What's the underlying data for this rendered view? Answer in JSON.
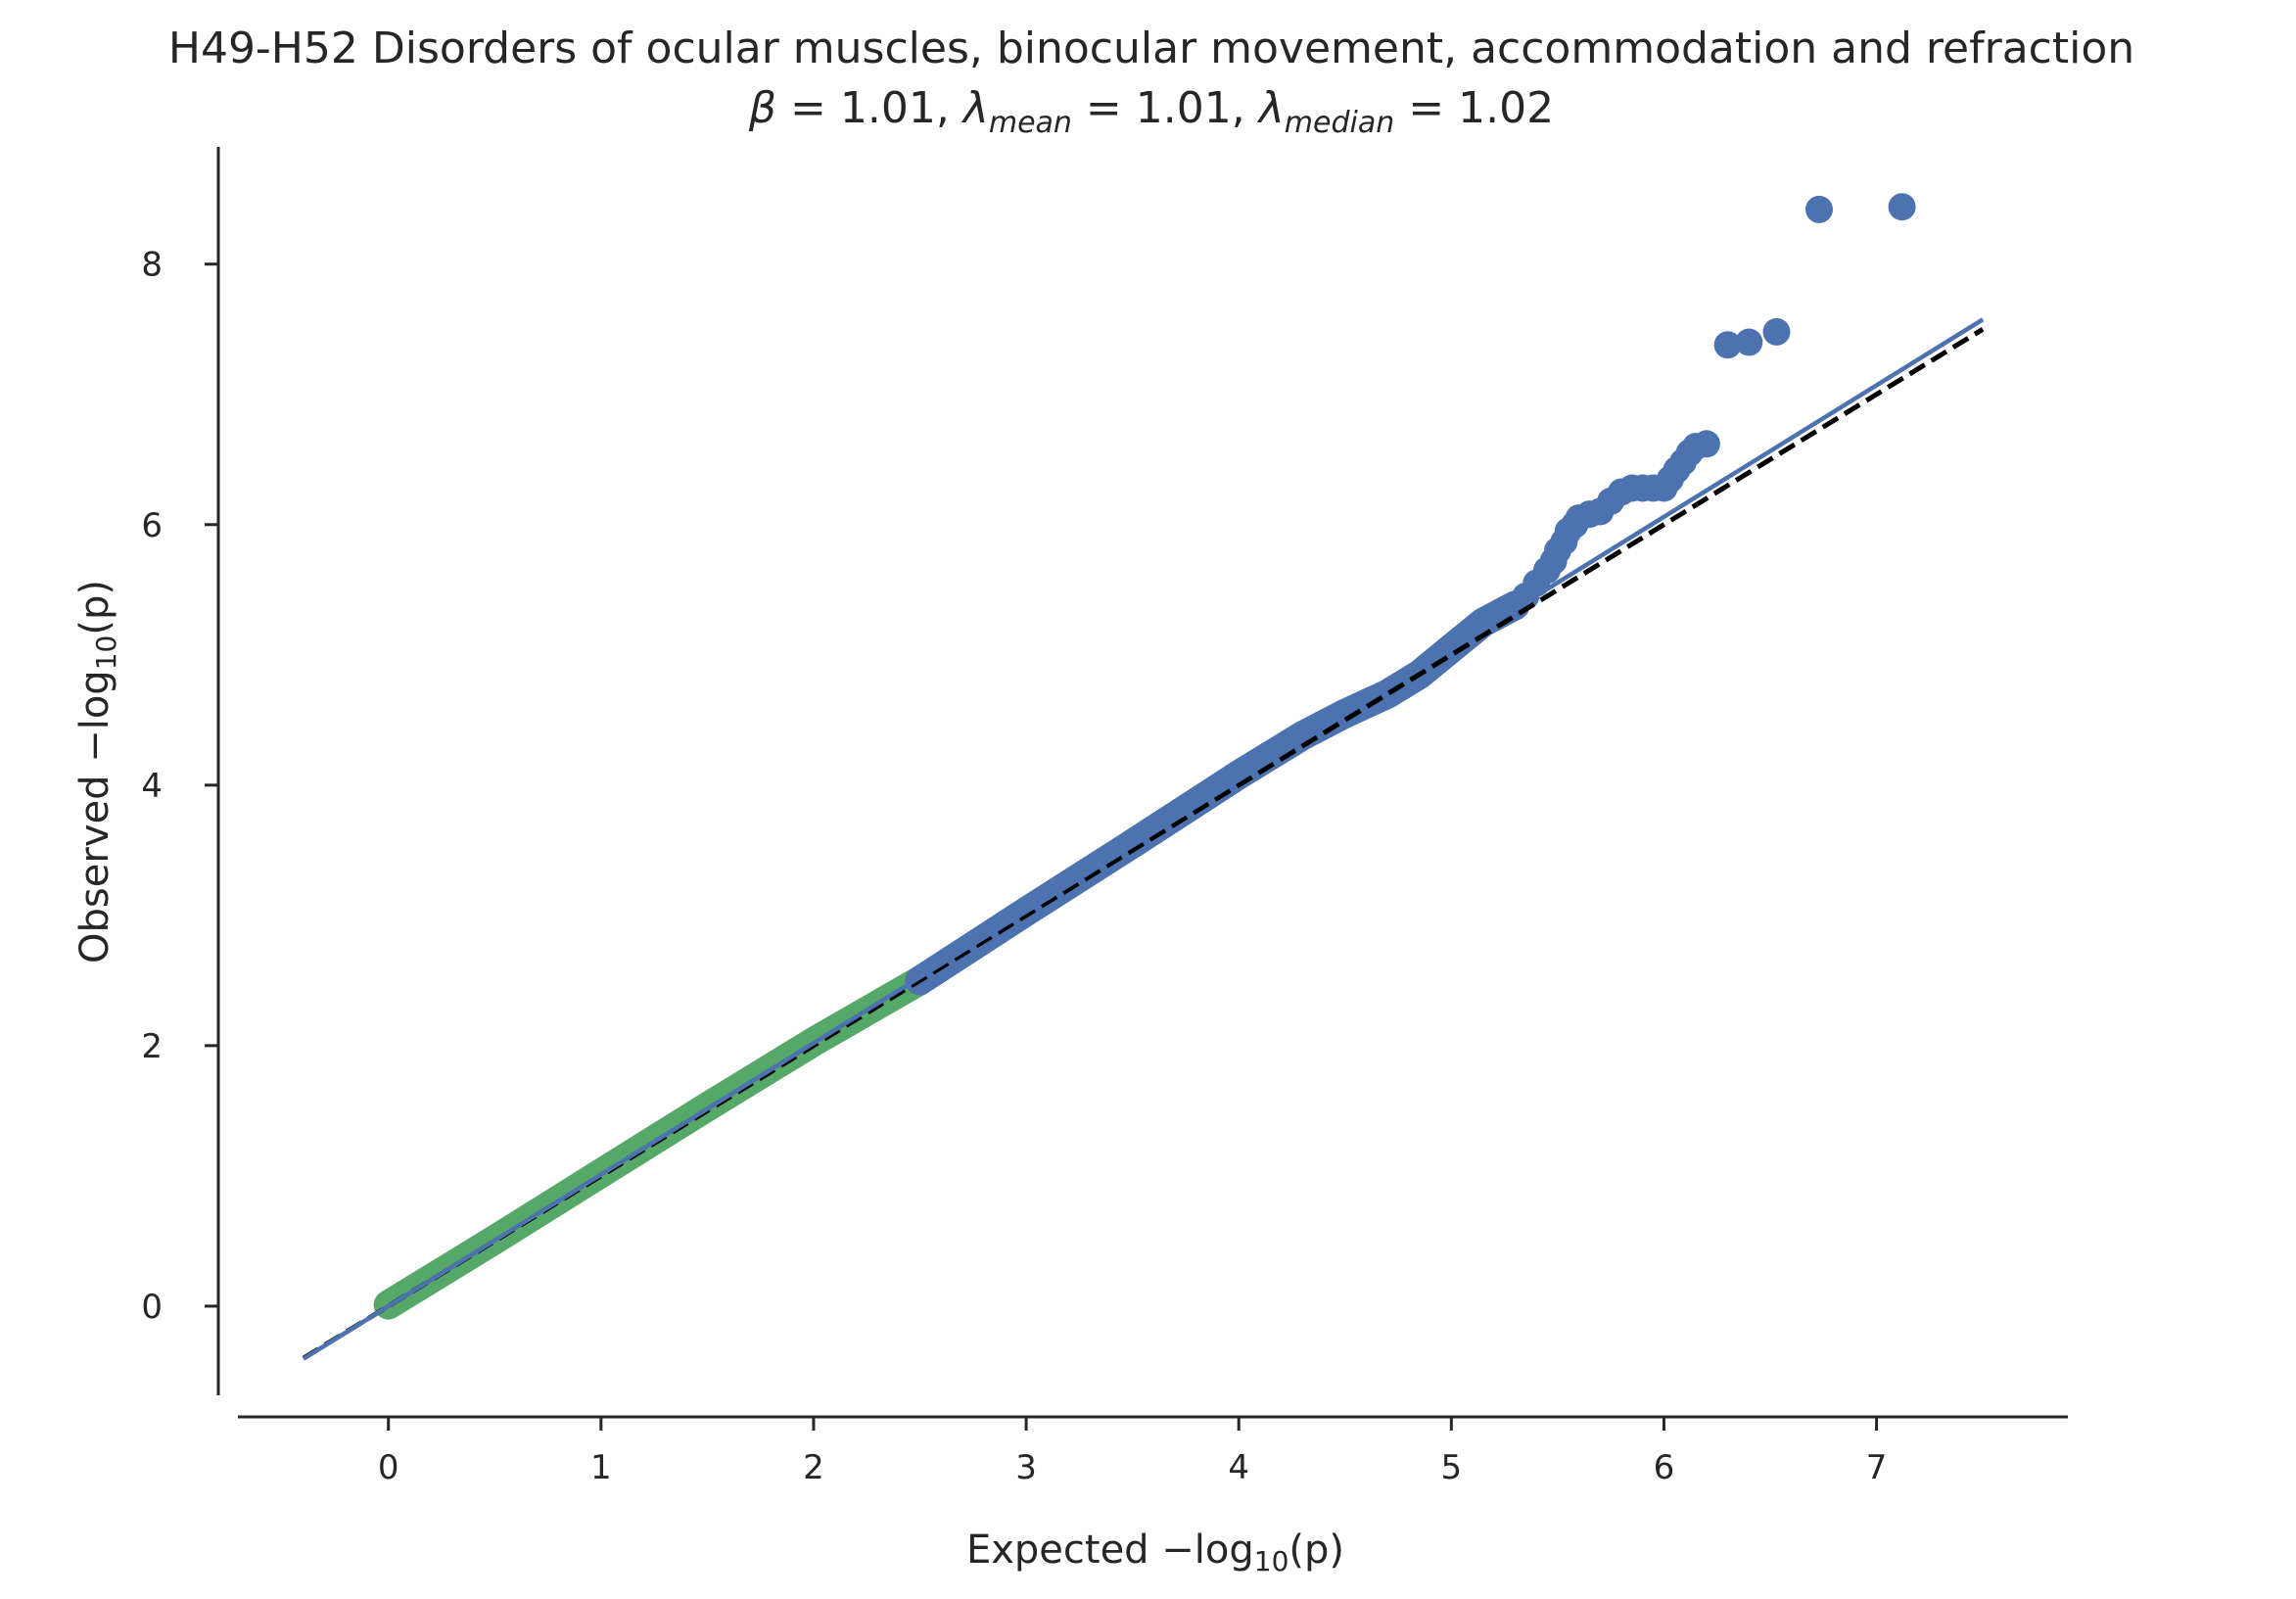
{
  "chart_data": {
    "type": "scatter",
    "title": "H49-H52 Disorders of ocular muscles, binocular movement, accommodation and refraction",
    "subtitle": {
      "beta_symbol": "β",
      "beta_value": "1.01",
      "lambda_symbol": "λ",
      "lambda_mean_sub": "mean",
      "lambda_mean_value": "1.01",
      "lambda_median_sub": "median",
      "lambda_median_value": "1.02"
    },
    "xlabel": {
      "prefix": "Expected −log",
      "sub": "10",
      "suffix": "(p)"
    },
    "ylabel": {
      "prefix": "Observed −log",
      "sub": "10",
      "suffix": "(p)"
    },
    "xlim": [
      -0.8,
      7.9
    ],
    "ylim": [
      -0.85,
      8.9
    ],
    "x_ticks": [
      0,
      1,
      2,
      3,
      4,
      5,
      6,
      7
    ],
    "x_tick_labels": [
      "0",
      "1",
      "2",
      "3",
      "4",
      "5",
      "6",
      "7"
    ],
    "y_ticks": [
      0,
      2,
      4,
      6,
      8
    ],
    "y_tick_labels": [
      "0",
      "2",
      "4",
      "6",
      "8"
    ],
    "grid": false,
    "colors": {
      "low": "#55a868",
      "high": "#4c72b0",
      "diagonal": "#000000",
      "fit": "#4c72b0",
      "axis": "#262626"
    },
    "series": [
      {
        "kind": "band",
        "color": "#55a868",
        "x": [
          0.0,
          0.5,
          1.0,
          1.5,
          2.0,
          2.5
        ],
        "y": [
          0.01,
          0.51,
          1.02,
          1.53,
          2.03,
          2.5
        ]
      },
      {
        "kind": "band",
        "color": "#4c72b0",
        "x": [
          2.5,
          3.0,
          3.5,
          4.0,
          4.3,
          4.5,
          4.7,
          4.85,
          5.0,
          5.15,
          5.3
        ],
        "y": [
          2.5,
          3.03,
          3.55,
          4.08,
          4.38,
          4.55,
          4.7,
          4.85,
          5.05,
          5.25,
          5.38
        ]
      },
      {
        "kind": "points",
        "color": "#4c72b0",
        "x": [
          5.35,
          5.4,
          5.45,
          5.48,
          5.5,
          5.53,
          5.55,
          5.58,
          5.6,
          5.65,
          5.7,
          5.75,
          5.8,
          5.85,
          5.9,
          5.95,
          6.0,
          6.03,
          6.06,
          6.09,
          6.12,
          6.15,
          6.2,
          6.3,
          6.4,
          6.53,
          6.73,
          7.12
        ],
        "y": [
          5.45,
          5.55,
          5.65,
          5.72,
          5.8,
          5.87,
          5.95,
          6.0,
          6.05,
          6.08,
          6.1,
          6.18,
          6.25,
          6.28,
          6.28,
          6.28,
          6.28,
          6.35,
          6.42,
          6.48,
          6.55,
          6.6,
          6.62,
          7.38,
          7.4,
          7.48,
          8.42,
          8.44
        ]
      }
    ],
    "lines": [
      {
        "kind": "diagonal",
        "style": "dashed",
        "color": "#000000",
        "x": [
          -0.4,
          7.5
        ],
        "y": [
          -0.4,
          7.5
        ]
      },
      {
        "kind": "fit",
        "style": "solid",
        "color": "#4c72b0",
        "x": [
          -0.4,
          7.5
        ],
        "y": [
          -0.404,
          7.575
        ]
      }
    ]
  }
}
